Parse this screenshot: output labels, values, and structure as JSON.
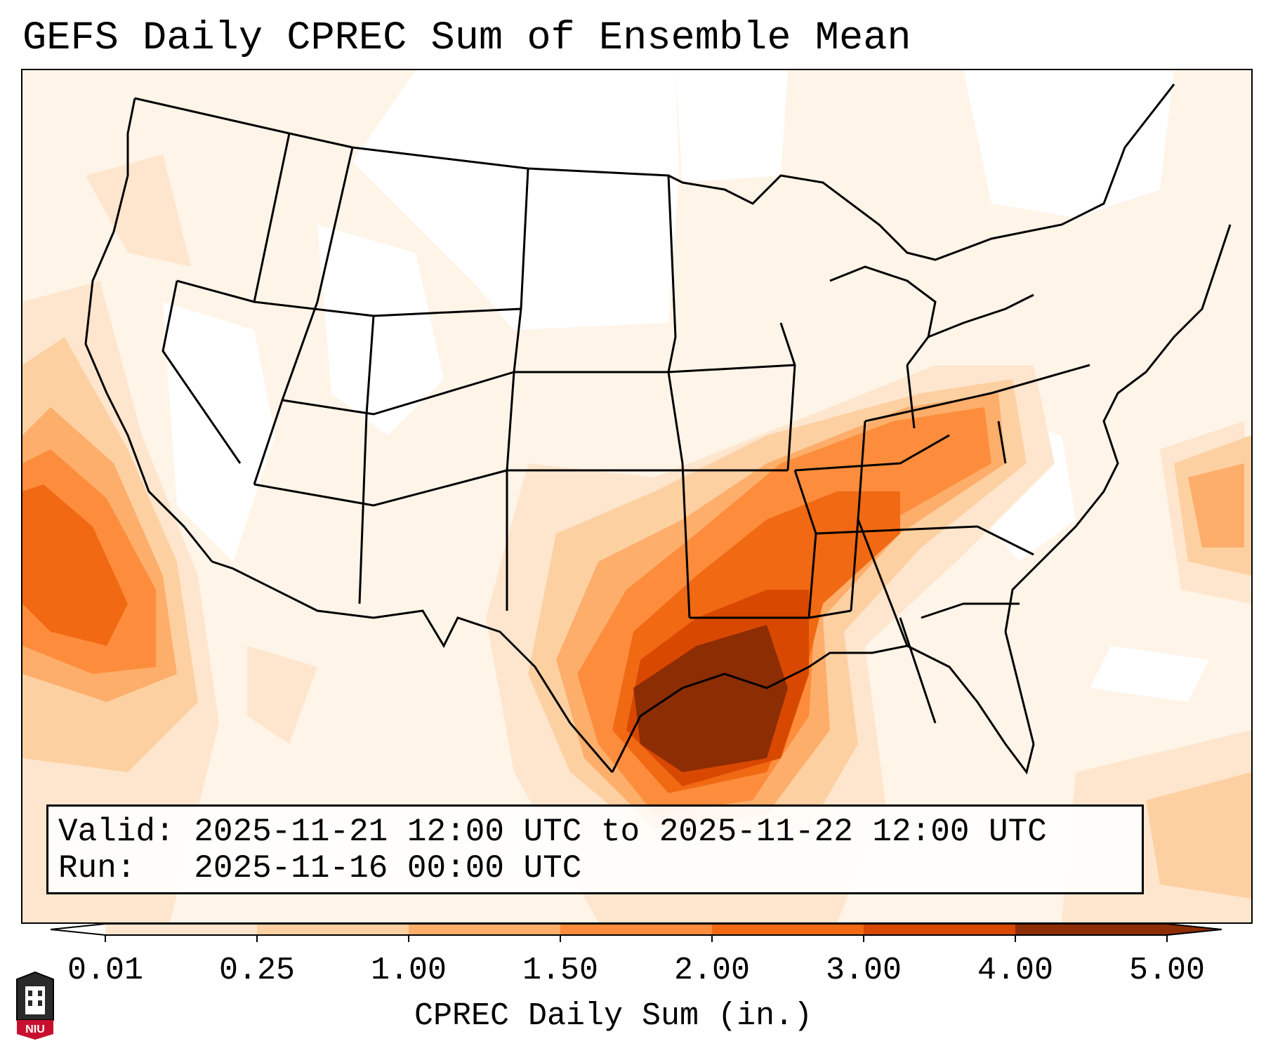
{
  "title": "GEFS Daily CPREC Sum of Ensemble Mean",
  "info": {
    "valid_label": "Valid:",
    "valid_text": "2025-11-21 12:00 UTC to 2025-11-22 12:00 UTC",
    "run_label": "Run:",
    "run_text": "2025-11-16 00:00 UTC"
  },
  "colorbar": {
    "label": "CPREC Daily Sum (in.)",
    "ticks": [
      "0.01",
      "0.25",
      "1.00",
      "1.50",
      "2.00",
      "3.00",
      "4.00",
      "5.00"
    ],
    "levels": [
      0.01,
      0.25,
      1.0,
      1.5,
      2.0,
      3.0,
      4.0,
      5.0
    ],
    "colors": [
      "#fff5eb",
      "#fee6ce",
      "#fdd0a2",
      "#fdae6b",
      "#fd8d3c",
      "#f16913",
      "#d94801",
      "#8c2d04"
    ],
    "extend": "both"
  },
  "logo": {
    "text": "NIU",
    "accent": "#c8102e"
  },
  "colors": {
    "accent_dark": "#8c2d04",
    "background": "#ffffff"
  }
}
